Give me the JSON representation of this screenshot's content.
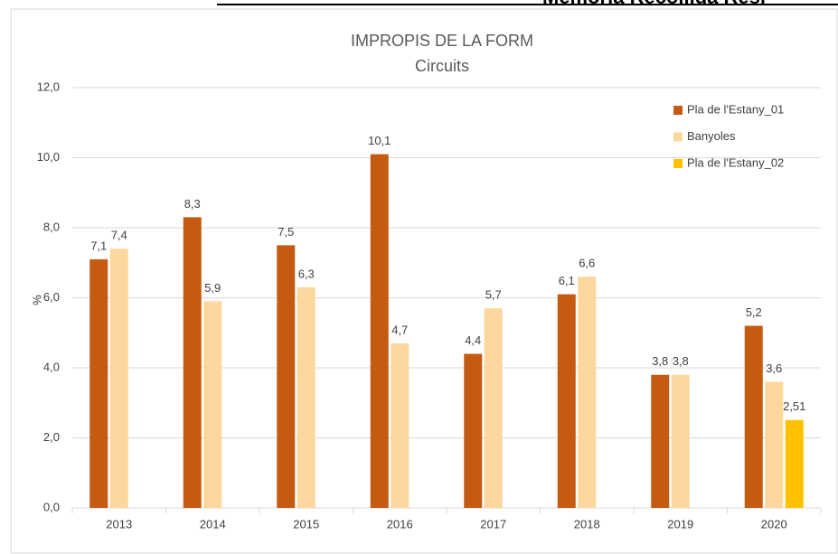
{
  "header": {
    "title": "Memòria Recollida Resi"
  },
  "chart_data": {
    "type": "bar",
    "title": "IMPROPIS DE LA FORM",
    "subtitle": "Circuits",
    "y_label": "%",
    "categories": [
      "2013",
      "2014",
      "2015",
      "2016",
      "2017",
      "2018",
      "2019",
      "2020"
    ],
    "series": [
      {
        "name": "Pla de l'Estany_01",
        "color": "#c55a11",
        "values": [
          7.1,
          8.3,
          7.5,
          10.1,
          4.4,
          6.1,
          3.8,
          5.2
        ],
        "value_labels": [
          "7,1",
          "8,3",
          "7,5",
          "10,1",
          "4,4",
          "6,1",
          "3,8",
          "5,2"
        ]
      },
      {
        "name": "Banyoles",
        "color": "#fdd79d",
        "values": [
          7.4,
          5.9,
          6.3,
          4.7,
          5.7,
          6.6,
          3.8,
          3.6
        ],
        "value_labels": [
          "7,4",
          "5,9",
          "6,3",
          "4,7",
          "5,7",
          "6,6",
          "3,8",
          "3,6"
        ]
      },
      {
        "name": "Pla de l'Estany_02",
        "color": "#ffc000",
        "values": [
          null,
          null,
          null,
          null,
          null,
          null,
          null,
          2.51
        ],
        "value_labels": [
          null,
          null,
          null,
          null,
          null,
          null,
          null,
          "2,51"
        ]
      }
    ],
    "ylim": [
      0,
      12
    ],
    "yticks": [
      {
        "value": 0,
        "label": "0,0"
      },
      {
        "value": 2,
        "label": "2,0"
      },
      {
        "value": 4,
        "label": "4,0"
      },
      {
        "value": 6,
        "label": "6,0"
      },
      {
        "value": 8,
        "label": "8,0"
      },
      {
        "value": 10,
        "label": "10,0"
      },
      {
        "value": 12,
        "label": "12,0"
      }
    ],
    "grid": true,
    "legend": "top-right"
  }
}
